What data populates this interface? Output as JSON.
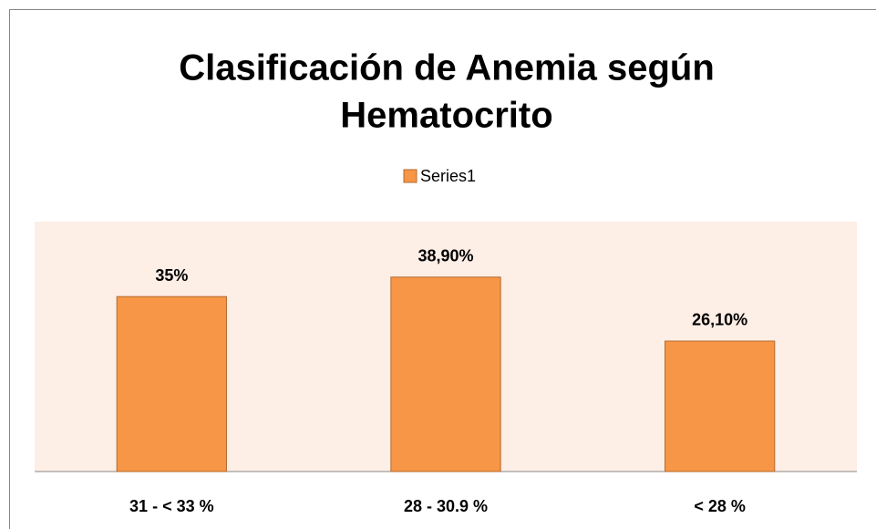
{
  "chart_data": {
    "type": "bar",
    "title": [
      "Clasificación de Anemia según",
      "Hematocrito"
    ],
    "categories": [
      "31 -  < 33 %",
      "28 - 30.9 %",
      "< 28 %"
    ],
    "series": [
      {
        "name": "Series1",
        "color": "#f79646",
        "values": [
          35,
          38.9,
          26.1
        ],
        "value_labels": [
          "35%",
          "38,90%",
          "26,10%"
        ]
      }
    ],
    "ylim": [
      0,
      50
    ],
    "legend": "top"
  }
}
